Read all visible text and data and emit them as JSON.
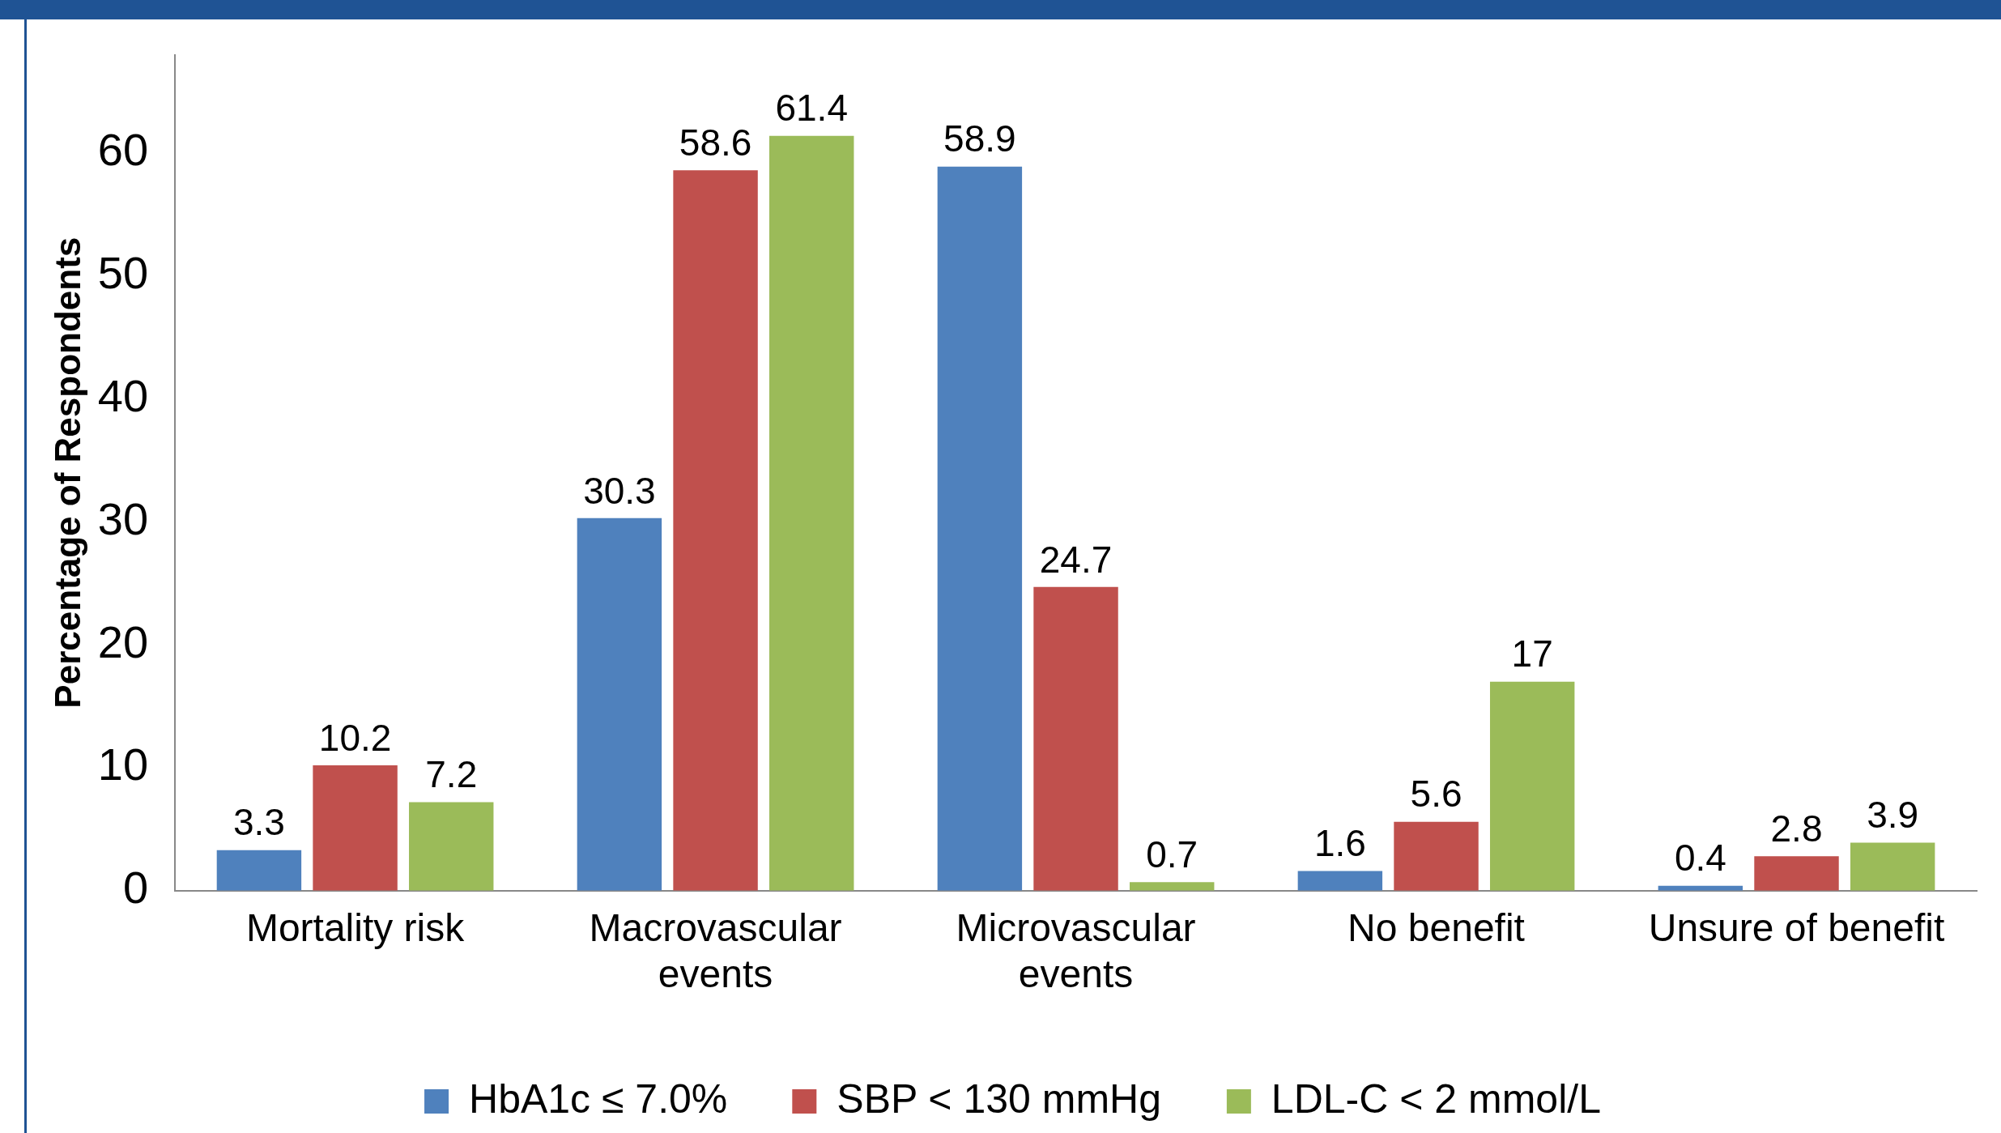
{
  "chart_data": {
    "type": "bar",
    "ylabel": "Percentage of Respondents",
    "categories": [
      "Mortality risk",
      "Macrovascular events",
      "Microvascular events",
      "No benefit",
      "Unsure of benefit"
    ],
    "series": [
      {
        "name": "HbA1c ≤ 7.0%",
        "color": "#4f81bd",
        "values": [
          3.3,
          30.3,
          58.9,
          1.6,
          0.4
        ]
      },
      {
        "name": "SBP < 130 mmHg",
        "color": "#c0504d",
        "values": [
          10.2,
          58.6,
          24.7,
          5.6,
          2.8
        ]
      },
      {
        "name": "LDL-C < 2 mmol/L",
        "color": "#9bbb59",
        "values": [
          7.2,
          61.4,
          0.7,
          17,
          3.9
        ]
      }
    ],
    "ylim": [
      0,
      68
    ],
    "yticks": [
      0,
      10,
      20,
      30,
      40,
      50,
      60
    ],
    "data_labels": true,
    "grid": false,
    "legend": "bottom"
  }
}
